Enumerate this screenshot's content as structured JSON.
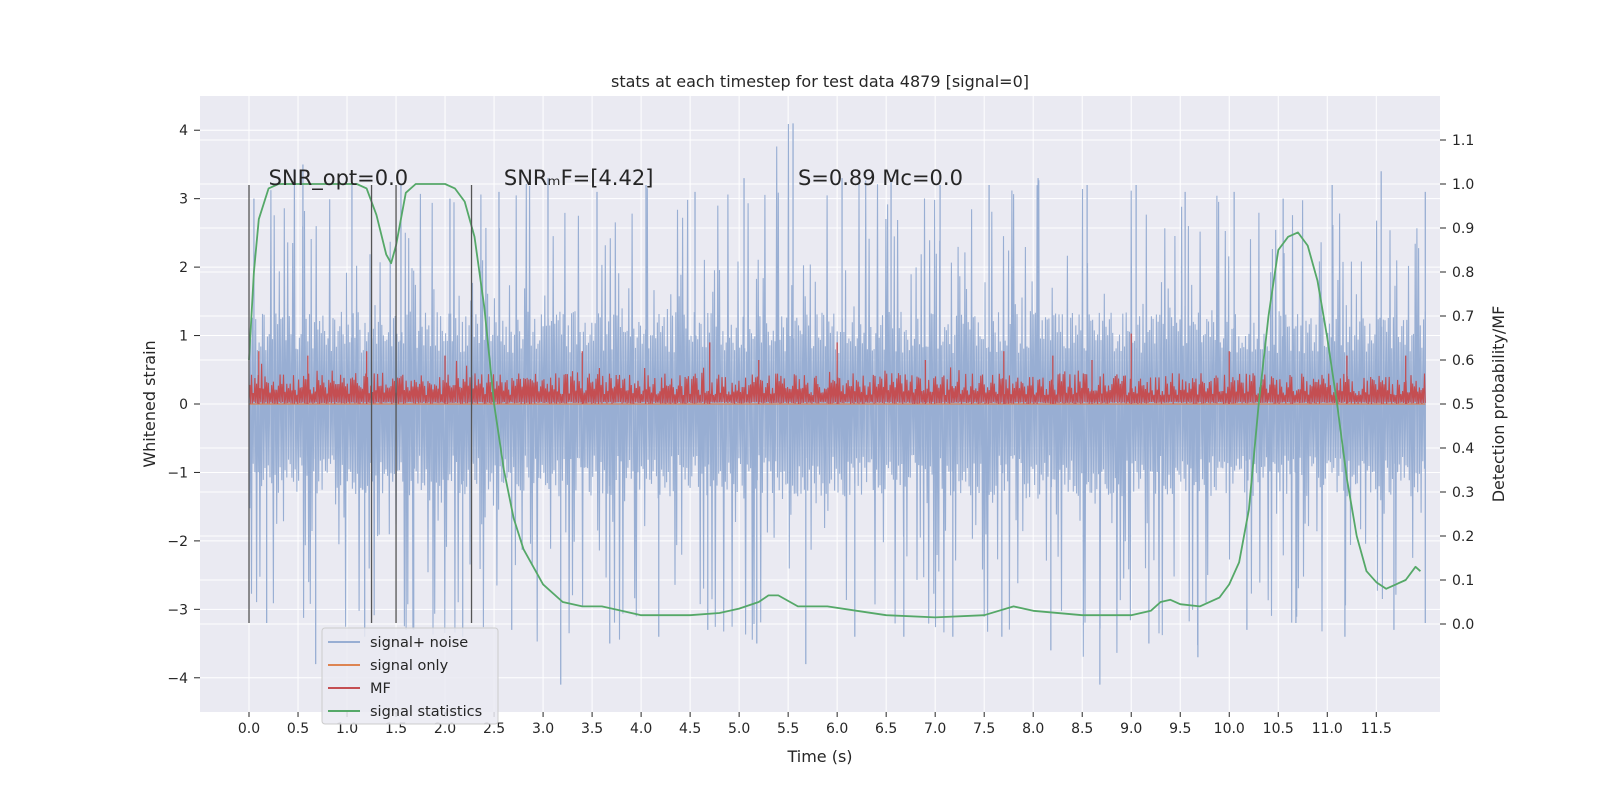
{
  "chart_data": {
    "type": "line",
    "title": "stats at each timestep for test data 4879 [signal=0]",
    "xlabel": "Time (s)",
    "ylabel_left": "Whitened strain",
    "ylabel_right": "Detection probability/MF",
    "xlim": [
      -0.5,
      12.15
    ],
    "ylim_left": [
      -4.5,
      4.5
    ],
    "ylim_right": [
      -0.2,
      1.2
    ],
    "x_ticks": [
      0.0,
      0.5,
      1.0,
      1.5,
      2.0,
      2.5,
      3.0,
      3.5,
      4.0,
      4.5,
      5.0,
      5.5,
      6.0,
      6.5,
      7.0,
      7.5,
      8.0,
      8.5,
      9.0,
      9.5,
      10.0,
      10.5,
      11.0,
      11.5
    ],
    "x_tick_labels": [
      "0.0",
      "0.5",
      "1.0",
      "1.5",
      "2.0",
      "2.5",
      "3.0",
      "3.5",
      "4.0",
      "4.5",
      "5.0",
      "5.5",
      "6.0",
      "6.5",
      "7.0",
      "7.5",
      "8.0",
      "8.5",
      "9.0",
      "9.5",
      "10.0",
      "10.5",
      "11.0",
      "11.5"
    ],
    "y_left_ticks": [
      4,
      3,
      2,
      1,
      0,
      -1,
      -2,
      -3,
      -4
    ],
    "y_left_tick_labels": [
      "4",
      "3",
      "2",
      "1",
      "0",
      "−1",
      "−2",
      "−3",
      "−4"
    ],
    "y_right_ticks": [
      1.1,
      1.0,
      0.9,
      0.8,
      0.7,
      0.6,
      0.5,
      0.4,
      0.3,
      0.2,
      0.1,
      0.0
    ],
    "y_right_tick_labels": [
      "1.1",
      "1.0",
      "0.9",
      "0.8",
      "0.7",
      "0.6",
      "0.5",
      "0.4",
      "0.3",
      "0.2",
      "0.1",
      "0.0"
    ],
    "grid": true,
    "legend_position": "lower-left",
    "annotations": [
      {
        "text": "SNR_opt=0.0",
        "x": 0.2,
        "y": 3.2
      },
      {
        "text": "SNRₘF=[4.42]",
        "x": 2.6,
        "y": 3.2
      },
      {
        "text": "S=0.89   Mᴄ=0.0",
        "x": 5.6,
        "y": 3.2
      }
    ],
    "vertical_markers": [
      0.0,
      1.25,
      1.5,
      2.27
    ],
    "vertical_marker_range": [
      -3.2,
      3.2
    ],
    "series": [
      {
        "name": "signal+ noise",
        "axis": "left",
        "color": "#98aed3",
        "x_range": [
          0.0,
          12.0
        ],
        "envelope_x": [
          0.0,
          0.5,
          1.0,
          1.5,
          2.0,
          2.5,
          3.0,
          3.5,
          4.0,
          4.5,
          5.0,
          5.5,
          6.0,
          6.5,
          7.0,
          7.5,
          8.0,
          8.5,
          9.0,
          9.5,
          10.0,
          10.5,
          11.0,
          11.5,
          12.0
        ],
        "envelope_upper": [
          3.0,
          3.5,
          3.4,
          3.2,
          3.0,
          3.1,
          3.3,
          3.1,
          3.2,
          3.1,
          3.3,
          4.1,
          3.3,
          3.3,
          3.2,
          3.2,
          3.3,
          3.2,
          3.2,
          3.1,
          3.1,
          3.0,
          3.2,
          3.4,
          3.1
        ],
        "envelope_lower": [
          -3.2,
          -3.8,
          -3.4,
          -3.3,
          -3.4,
          -3.3,
          -4.1,
          -3.5,
          -3.4,
          -3.3,
          -3.5,
          -3.8,
          -3.4,
          -3.4,
          -3.4,
          -3.4,
          -3.6,
          -4.1,
          -3.5,
          -3.7,
          -3.3,
          -3.2,
          -3.4,
          -3.3,
          -3.2
        ],
        "typical_amplitude": 1.35
      },
      {
        "name": "signal only",
        "axis": "left",
        "color": "#dd8452",
        "x": [
          0.0,
          12.0
        ],
        "values": [
          0.0,
          0.0
        ]
      },
      {
        "name": "MF",
        "axis": "right",
        "color": "#c44e52",
        "x_range": [
          0.0,
          12.0
        ],
        "band_lower": 0.5,
        "band_typical_upper": 0.57,
        "peak_x": [
          0.1,
          0.6,
          1.2,
          2.0,
          3.4,
          4.7,
          5.2,
          6.0,
          6.9,
          7.7,
          8.2,
          8.6,
          9.0,
          10.0,
          11.2,
          11.8
        ],
        "peak_values": [
          0.62,
          0.61,
          0.62,
          0.61,
          0.62,
          0.64,
          0.6,
          0.64,
          0.6,
          0.62,
          0.61,
          0.6,
          0.66,
          0.62,
          0.61,
          0.61
        ]
      },
      {
        "name": "signal statistics",
        "axis": "right",
        "color": "#55a868",
        "x": [
          0.0,
          0.05,
          0.1,
          0.2,
          0.3,
          0.5,
          0.8,
          1.0,
          1.1,
          1.2,
          1.3,
          1.4,
          1.45,
          1.5,
          1.6,
          1.7,
          1.8,
          2.0,
          2.1,
          2.2,
          2.3,
          2.4,
          2.5,
          2.6,
          2.7,
          2.8,
          3.0,
          3.2,
          3.4,
          3.6,
          3.8,
          4.0,
          4.5,
          4.8,
          5.0,
          5.2,
          5.3,
          5.4,
          5.6,
          5.9,
          6.2,
          6.5,
          7.0,
          7.5,
          7.8,
          8.0,
          8.5,
          9.0,
          9.2,
          9.3,
          9.4,
          9.5,
          9.7,
          9.9,
          10.0,
          10.1,
          10.2,
          10.3,
          10.4,
          10.5,
          10.6,
          10.7,
          10.8,
          10.9,
          11.0,
          11.1,
          11.2,
          11.3,
          11.4,
          11.5,
          11.6,
          11.7,
          11.8,
          11.9,
          11.95
        ],
        "values": [
          0.6,
          0.8,
          0.92,
          0.99,
          1.0,
          1.0,
          1.0,
          1.0,
          1.0,
          0.99,
          0.93,
          0.84,
          0.82,
          0.86,
          0.98,
          1.0,
          1.0,
          1.0,
          0.99,
          0.96,
          0.88,
          0.72,
          0.5,
          0.35,
          0.24,
          0.17,
          0.09,
          0.05,
          0.04,
          0.04,
          0.03,
          0.02,
          0.02,
          0.025,
          0.035,
          0.05,
          0.065,
          0.065,
          0.04,
          0.04,
          0.03,
          0.02,
          0.015,
          0.02,
          0.04,
          0.03,
          0.02,
          0.02,
          0.03,
          0.05,
          0.055,
          0.045,
          0.04,
          0.06,
          0.09,
          0.14,
          0.26,
          0.5,
          0.7,
          0.85,
          0.88,
          0.89,
          0.86,
          0.78,
          0.65,
          0.5,
          0.33,
          0.2,
          0.12,
          0.095,
          0.08,
          0.09,
          0.1,
          0.13,
          0.12
        ]
      }
    ]
  }
}
